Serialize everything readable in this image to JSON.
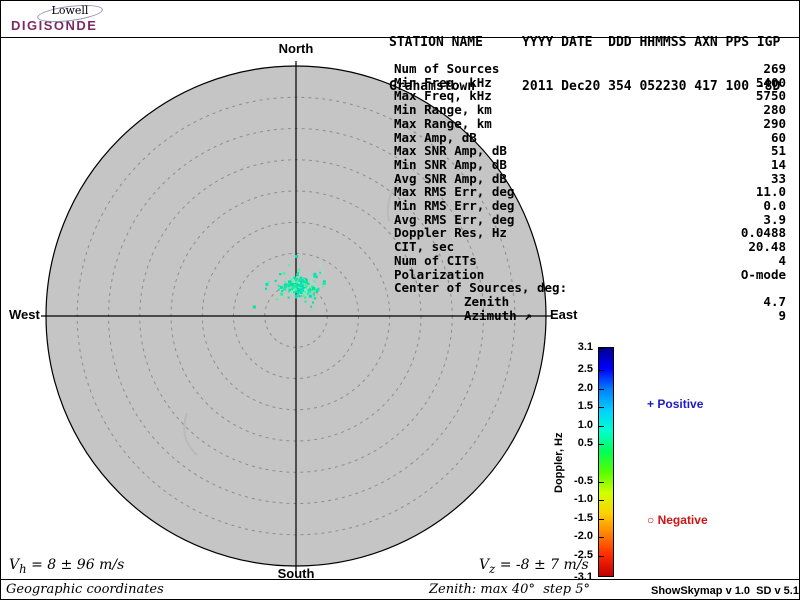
{
  "header": {
    "logo": {
      "line1": "Lowell",
      "line2": "DIGISONDE"
    },
    "row1": "STATION NAME     YYYY DATE  DDD HHMMSS AXN PPS IGP",
    "row2": "Grahamstown      2011 Dec20 354 052230 417 100 -8D"
  },
  "stats": {
    "rows": [
      {
        "label": "Num of Sources",
        "value": "269"
      },
      {
        "label": "Min Freq, kHz",
        "value": "5400"
      },
      {
        "label": "Max Freq, kHz",
        "value": "5750"
      },
      {
        "label": "Min Range, km",
        "value": "280"
      },
      {
        "label": "Max Range, km",
        "value": "290"
      },
      {
        "label": "Max Amp, dB",
        "value": "60"
      },
      {
        "label": "Max SNR Amp, dB",
        "value": "51"
      },
      {
        "label": "Min SNR Amp, dB",
        "value": "14"
      },
      {
        "label": "Avg SNR Amp, dB",
        "value": "33"
      },
      {
        "label": "Max RMS Err, deg",
        "value": "11.0"
      },
      {
        "label": "Min RMS Err, deg",
        "value": "0.0"
      },
      {
        "label": "Avg RMS Err, deg",
        "value": "3.9"
      },
      {
        "label": "Doppler Res, Hz",
        "value": "0.0488"
      },
      {
        "label": "CIT, sec",
        "value": "20.48"
      },
      {
        "label": "Num of CITs",
        "value": "4"
      },
      {
        "label": "Polarization",
        "value": "O-mode"
      },
      {
        "label": "Center of Sources, deg:",
        "value": ""
      },
      {
        "label": "Zenith",
        "value": "4.7",
        "indent": true
      },
      {
        "label": "Azimuth ↗",
        "value": "9",
        "indent": true
      }
    ]
  },
  "skymap": {
    "north": "North",
    "south": "South",
    "east": "East",
    "west": "West"
  },
  "legend": {
    "positive": {
      "marker": "+",
      "label": "Positive",
      "color": "#1a1ac8"
    },
    "negative": {
      "marker": "○",
      "label": "Negative",
      "color": "#cc1414"
    }
  },
  "footer": {
    "vh": {
      "symbol": "V",
      "sub": "h",
      "rest": " = 8 ± 96 m/s"
    },
    "vz": {
      "symbol": "V",
      "sub": "z",
      "rest": " = -8 ± 7 m/s"
    },
    "coordinates": "Geographic coordinates",
    "zenith_info": "Zenith: max 40°  step 5°",
    "version": "ShowSkymap v 1.0  SD v 5.1"
  },
  "chart_data": {
    "type": "scatter",
    "projection": "polar_skymap",
    "zenith_max_deg": 40,
    "zenith_step_deg": 5,
    "num_sources": 269,
    "cluster": {
      "center_zenith_deg": 4.7,
      "center_azimuth_deg": 9,
      "approx_spread_deg": 2.5,
      "doppler_hz_values": "near zero, slightly positive (green-cyan)",
      "colors": [
        "#2ef28e",
        "#00e896",
        "#18e9ac",
        "#00dcc0",
        "#52f29e",
        "#0bd8a2",
        "#7df2c6",
        "#00e4b2"
      ]
    },
    "colorbar": {
      "label": "Doppler, Hz",
      "min": -3.1,
      "max": 3.1,
      "ticks": [
        {
          "v": 3.1,
          "t": "3.1"
        },
        {
          "v": 2.5,
          "t": "2.5"
        },
        {
          "v": 2.0,
          "t": "2.0"
        },
        {
          "v": 1.5,
          "t": "1.5"
        },
        {
          "v": 1.0,
          "t": "1.0"
        },
        {
          "v": 0.5,
          "t": "0.5"
        },
        {
          "v": -0.5,
          "t": "-0.5"
        },
        {
          "v": -1.0,
          "t": "-1.0"
        },
        {
          "v": -1.5,
          "t": "-1.5"
        },
        {
          "v": -2.0,
          "t": "-2.0"
        },
        {
          "v": -2.5,
          "t": "-2.5"
        },
        {
          "v": -3.1,
          "t": "-3.1"
        }
      ],
      "gradient": [
        "#00008f",
        "#0000ff",
        "#0080ff",
        "#00d0ff",
        "#00ffd0",
        "#00ff55",
        "#55ff00",
        "#d0ff00",
        "#ffd000",
        "#ff8000",
        "#ff2a00",
        "#bf0000"
      ]
    }
  }
}
